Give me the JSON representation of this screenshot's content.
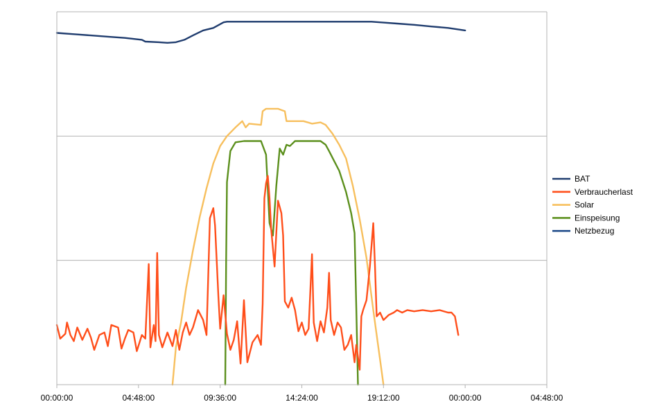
{
  "chart_data": {
    "type": "line",
    "title": "",
    "xlabel": "",
    "ylabel": "",
    "x_unit": "hours",
    "xlim": [
      0,
      28.8
    ],
    "x_ticks": [
      {
        "value": 0,
        "label": "00:00:00"
      },
      {
        "value": 4.8,
        "label": "04:48:00"
      },
      {
        "value": 9.6,
        "label": "09:36:00"
      },
      {
        "value": 14.4,
        "label": "14:24:00"
      },
      {
        "value": 19.2,
        "label": "19:12:00"
      },
      {
        "value": 24.0,
        "label": "00:00:00"
      },
      {
        "value": 28.8,
        "label": "04:48:00"
      }
    ],
    "ylim": [
      0,
      3
    ],
    "grid": "horizontal",
    "y_tick_labels_shown": false,
    "legend_position": "right",
    "series": [
      {
        "name": "BAT",
        "color": "#1f3c6e",
        "points": [
          [
            0,
            2.83
          ],
          [
            1,
            2.82
          ],
          [
            2,
            2.81
          ],
          [
            3,
            2.8
          ],
          [
            4,
            2.79
          ],
          [
            5,
            2.775
          ],
          [
            5.2,
            2.76
          ],
          [
            6,
            2.755
          ],
          [
            6.5,
            2.75
          ],
          [
            7.0,
            2.755
          ],
          [
            7.5,
            2.775
          ],
          [
            8.0,
            2.81
          ],
          [
            8.6,
            2.85
          ],
          [
            9.2,
            2.87
          ],
          [
            9.8,
            2.915
          ],
          [
            10,
            2.92
          ],
          [
            12,
            2.92
          ],
          [
            14,
            2.92
          ],
          [
            16,
            2.92
          ],
          [
            18,
            2.92
          ],
          [
            18.5,
            2.92
          ],
          [
            19,
            2.915
          ],
          [
            20,
            2.905
          ],
          [
            21,
            2.895
          ],
          [
            22,
            2.882
          ],
          [
            23,
            2.87
          ],
          [
            24,
            2.85
          ]
        ]
      },
      {
        "name": "Verbraucherlast",
        "color": "#ff4e1a",
        "points": [
          [
            0,
            0.48
          ],
          [
            0.2,
            0.37
          ],
          [
            0.5,
            0.41
          ],
          [
            0.6,
            0.5
          ],
          [
            0.8,
            0.4
          ],
          [
            1,
            0.35
          ],
          [
            1.2,
            0.46
          ],
          [
            1.5,
            0.36
          ],
          [
            1.8,
            0.45
          ],
          [
            2,
            0.38
          ],
          [
            2.2,
            0.28
          ],
          [
            2.5,
            0.4
          ],
          [
            2.8,
            0.42
          ],
          [
            3,
            0.31
          ],
          [
            3.2,
            0.48
          ],
          [
            3.6,
            0.46
          ],
          [
            3.8,
            0.29
          ],
          [
            4,
            0.37
          ],
          [
            4.2,
            0.44
          ],
          [
            4.5,
            0.42
          ],
          [
            4.7,
            0.27
          ],
          [
            5,
            0.4
          ],
          [
            5.2,
            0.37
          ],
          [
            5.4,
            0.97
          ],
          [
            5.5,
            0.3
          ],
          [
            5.7,
            0.48
          ],
          [
            5.8,
            0.35
          ],
          [
            5.9,
            1.06
          ],
          [
            6,
            0.4
          ],
          [
            6.2,
            0.3
          ],
          [
            6.5,
            0.42
          ],
          [
            6.8,
            0.31
          ],
          [
            7.0,
            0.44
          ],
          [
            7.2,
            0.28
          ],
          [
            7.4,
            0.42
          ],
          [
            7.6,
            0.5
          ],
          [
            7.8,
            0.4
          ],
          [
            8.0,
            0.46
          ],
          [
            8.3,
            0.6
          ],
          [
            8.6,
            0.52
          ],
          [
            8.8,
            0.4
          ],
          [
            9.0,
            1.34
          ],
          [
            9.2,
            1.42
          ],
          [
            9.3,
            1.28
          ],
          [
            9.5,
            0.7
          ],
          [
            9.6,
            0.45
          ],
          [
            9.8,
            0.72
          ],
          [
            10,
            0.41
          ],
          [
            10.2,
            0.28
          ],
          [
            10.4,
            0.36
          ],
          [
            10.6,
            0.51
          ],
          [
            10.8,
            0.17
          ],
          [
            11,
            0.68
          ],
          [
            11.2,
            0.18
          ],
          [
            11.5,
            0.34
          ],
          [
            11.8,
            0.4
          ],
          [
            12,
            0.32
          ],
          [
            12.1,
            0.65
          ],
          [
            12.2,
            1.5
          ],
          [
            12.3,
            1.62
          ],
          [
            12.4,
            1.68
          ],
          [
            12.5,
            1.5
          ],
          [
            12.6,
            1.25
          ],
          [
            12.8,
            0.95
          ],
          [
            13,
            1.48
          ],
          [
            13.2,
            1.38
          ],
          [
            13.3,
            1.2
          ],
          [
            13.4,
            0.67
          ],
          [
            13.6,
            0.62
          ],
          [
            13.8,
            0.7
          ],
          [
            14,
            0.6
          ],
          [
            14.2,
            0.43
          ],
          [
            14.4,
            0.5
          ],
          [
            14.6,
            0.4
          ],
          [
            14.8,
            0.45
          ],
          [
            15.0,
            1.05
          ],
          [
            15.1,
            0.5
          ],
          [
            15.3,
            0.35
          ],
          [
            15.5,
            0.51
          ],
          [
            15.7,
            0.42
          ],
          [
            15.9,
            0.62
          ],
          [
            16.0,
            0.9
          ],
          [
            16.1,
            0.52
          ],
          [
            16.3,
            0.4
          ],
          [
            16.5,
            0.5
          ],
          [
            16.7,
            0.46
          ],
          [
            16.9,
            0.28
          ],
          [
            17.1,
            0.32
          ],
          [
            17.3,
            0.4
          ],
          [
            17.5,
            0.18
          ],
          [
            17.6,
            0.32
          ],
          [
            17.8,
            0.12
          ],
          [
            17.9,
            0.55
          ],
          [
            18.0,
            0.6
          ],
          [
            18.2,
            0.68
          ],
          [
            18.4,
            0.95
          ],
          [
            18.6,
            1.3
          ],
          [
            18.7,
            0.95
          ],
          [
            18.8,
            0.55
          ],
          [
            19,
            0.58
          ],
          [
            19.2,
            0.52
          ],
          [
            19.5,
            0.56
          ],
          [
            19.8,
            0.58
          ],
          [
            20,
            0.6
          ],
          [
            20.3,
            0.58
          ],
          [
            20.6,
            0.6
          ],
          [
            21,
            0.59
          ],
          [
            21.5,
            0.6
          ],
          [
            22,
            0.59
          ],
          [
            22.5,
            0.6
          ],
          [
            23,
            0.58
          ],
          [
            23.2,
            0.58
          ],
          [
            23.4,
            0.55
          ],
          [
            23.6,
            0.4
          ]
        ]
      },
      {
        "name": "Solar",
        "color": "#f7bf5d",
        "points": [
          [
            6.8,
            0.0
          ],
          [
            7.0,
            0.3
          ],
          [
            7.3,
            0.5
          ],
          [
            7.6,
            0.78
          ],
          [
            8.0,
            1.08
          ],
          [
            8.4,
            1.35
          ],
          [
            8.8,
            1.58
          ],
          [
            9.2,
            1.78
          ],
          [
            9.6,
            1.92
          ],
          [
            10,
            2.0
          ],
          [
            10.5,
            2.07
          ],
          [
            10.9,
            2.12
          ],
          [
            11.1,
            2.07
          ],
          [
            11.3,
            2.1
          ],
          [
            12,
            2.09
          ],
          [
            12.1,
            2.2
          ],
          [
            12.3,
            2.22
          ],
          [
            12.6,
            2.22
          ],
          [
            13.0,
            2.22
          ],
          [
            13.2,
            2.21
          ],
          [
            13.4,
            2.2
          ],
          [
            13.5,
            2.12
          ],
          [
            14,
            2.12
          ],
          [
            14.5,
            2.12
          ],
          [
            15,
            2.1
          ],
          [
            15.5,
            2.11
          ],
          [
            15.8,
            2.09
          ],
          [
            16.2,
            2.02
          ],
          [
            16.6,
            1.93
          ],
          [
            17.0,
            1.82
          ],
          [
            17.4,
            1.6
          ],
          [
            17.8,
            1.33
          ],
          [
            18.2,
            1.02
          ],
          [
            18.6,
            0.6
          ],
          [
            19.0,
            0.2
          ],
          [
            19.2,
            0.0
          ]
        ]
      },
      {
        "name": "Einspeisung",
        "color": "#5b8f1c",
        "points": [
          [
            9.9,
            0.0
          ],
          [
            9.95,
            1.0
          ],
          [
            10.0,
            1.63
          ],
          [
            10.2,
            1.88
          ],
          [
            10.5,
            1.95
          ],
          [
            11,
            1.96
          ],
          [
            11.5,
            1.96
          ],
          [
            12,
            1.96
          ],
          [
            12.3,
            1.85
          ],
          [
            12.5,
            1.3
          ],
          [
            12.7,
            1.2
          ],
          [
            12.9,
            1.6
          ],
          [
            13.1,
            1.9
          ],
          [
            13.3,
            1.85
          ],
          [
            13.5,
            1.93
          ],
          [
            13.7,
            1.92
          ],
          [
            14,
            1.96
          ],
          [
            14.5,
            1.96
          ],
          [
            15,
            1.96
          ],
          [
            15.5,
            1.96
          ],
          [
            15.8,
            1.93
          ],
          [
            16.0,
            1.88
          ],
          [
            16.3,
            1.8
          ],
          [
            16.6,
            1.72
          ],
          [
            17.0,
            1.55
          ],
          [
            17.3,
            1.38
          ],
          [
            17.5,
            1.22
          ],
          [
            17.6,
            0.62
          ],
          [
            17.7,
            0.0
          ]
        ]
      },
      {
        "name": "Netzbezug",
        "color": "#1f4b8a",
        "points": []
      }
    ]
  }
}
